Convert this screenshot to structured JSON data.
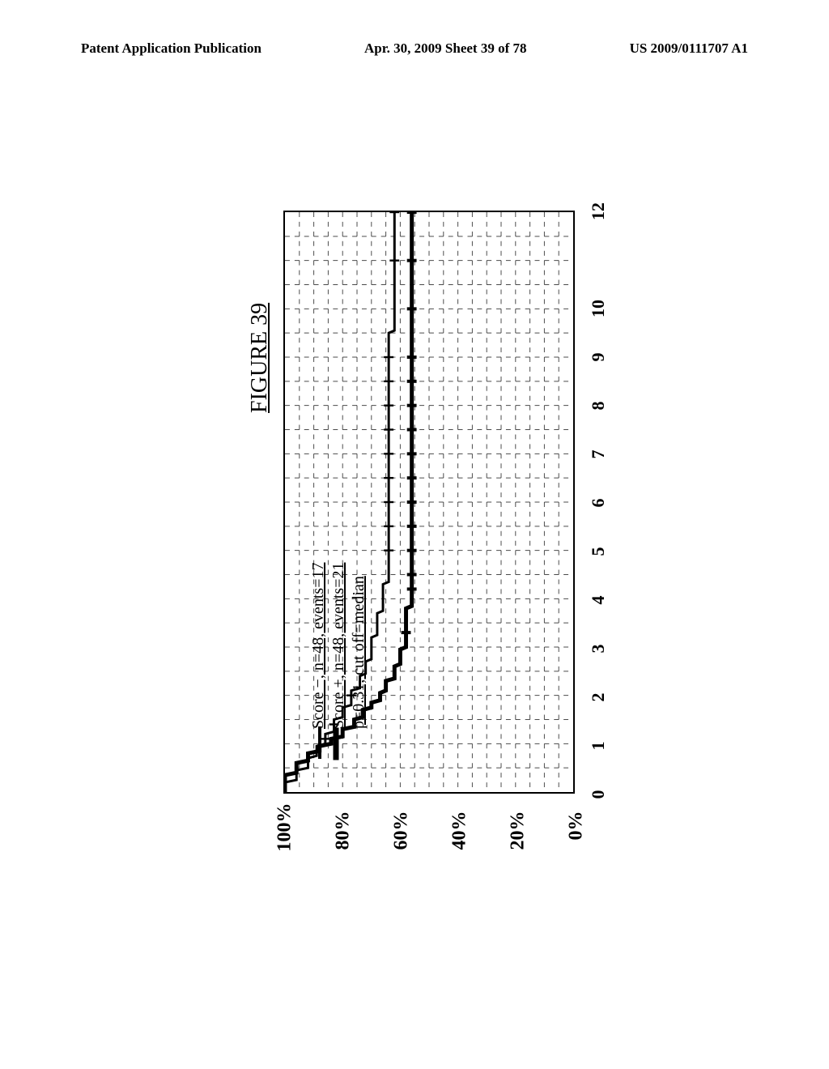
{
  "header": {
    "left": "Patent Application Publication",
    "center": "Apr. 30, 2009  Sheet 39 of 78",
    "right": "US 2009/0111707 A1"
  },
  "figure": {
    "title": "FIGURE 39",
    "title_fontsize": 28
  },
  "chart": {
    "type": "kaplan-meier",
    "y_ticks": [
      "0%",
      "20%",
      "40%",
      "60%",
      "80%",
      "100%"
    ],
    "y_positions_pct": [
      0,
      20,
      40,
      60,
      80,
      100
    ],
    "x_ticks": [
      "0",
      "1",
      "2",
      "3",
      "4",
      "5",
      "6",
      "7",
      "8",
      "9",
      "10",
      "12"
    ],
    "x_positions": [
      0,
      1,
      2,
      3,
      4,
      5,
      6,
      7,
      8,
      9,
      10,
      12
    ],
    "x_max": 12,
    "grid_h_steps": 20,
    "grid_v_steps_per_major": 2,
    "line_color": "#000000",
    "line_width_upper": 3,
    "line_width_lower": 5,
    "curve_upper": [
      [
        0,
        100
      ],
      [
        0.2,
        100
      ],
      [
        0.25,
        96
      ],
      [
        0.45,
        96
      ],
      [
        0.5,
        92
      ],
      [
        0.7,
        92
      ],
      [
        0.75,
        89
      ],
      [
        0.95,
        89
      ],
      [
        1.0,
        86
      ],
      [
        1.2,
        86
      ],
      [
        1.25,
        83
      ],
      [
        1.5,
        83
      ],
      [
        1.55,
        80
      ],
      [
        1.75,
        80
      ],
      [
        1.8,
        77
      ],
      [
        2.1,
        77
      ],
      [
        2.15,
        74
      ],
      [
        2.4,
        74
      ],
      [
        2.45,
        72
      ],
      [
        2.7,
        72
      ],
      [
        2.75,
        70
      ],
      [
        3.2,
        70
      ],
      [
        3.25,
        68
      ],
      [
        3.7,
        68
      ],
      [
        3.75,
        66
      ],
      [
        4.3,
        66
      ],
      [
        4.35,
        64
      ],
      [
        9.5,
        64
      ],
      [
        9.55,
        62
      ],
      [
        12,
        62
      ]
    ],
    "curve_lower": [
      [
        0,
        100
      ],
      [
        0.35,
        100
      ],
      [
        0.4,
        96
      ],
      [
        0.6,
        96
      ],
      [
        0.65,
        92
      ],
      [
        0.8,
        92
      ],
      [
        0.85,
        88
      ],
      [
        0.95,
        88
      ],
      [
        1.0,
        84
      ],
      [
        1.1,
        84
      ],
      [
        1.15,
        80
      ],
      [
        1.3,
        80
      ],
      [
        1.35,
        76
      ],
      [
        1.5,
        76
      ],
      [
        1.55,
        73
      ],
      [
        1.7,
        73
      ],
      [
        1.75,
        70
      ],
      [
        1.85,
        70
      ],
      [
        1.9,
        67
      ],
      [
        2.05,
        67
      ],
      [
        2.1,
        65
      ],
      [
        2.3,
        65
      ],
      [
        2.35,
        62
      ],
      [
        2.6,
        62
      ],
      [
        2.65,
        60
      ],
      [
        2.95,
        60
      ],
      [
        3.0,
        58
      ],
      [
        3.8,
        58
      ],
      [
        3.85,
        56
      ],
      [
        12,
        56
      ]
    ],
    "censor_marks_upper": [
      [
        1.1,
        86
      ],
      [
        1.4,
        83
      ],
      [
        2.0,
        77
      ],
      [
        5.0,
        64
      ],
      [
        5.5,
        64
      ],
      [
        6.0,
        64
      ],
      [
        6.5,
        64
      ],
      [
        7.0,
        64
      ],
      [
        7.5,
        64
      ],
      [
        8.0,
        64
      ],
      [
        8.5,
        64
      ],
      [
        9.0,
        64
      ],
      [
        11.0,
        62
      ],
      [
        12.0,
        62
      ]
    ],
    "censor_marks_lower": [
      [
        3.3,
        58
      ],
      [
        4.2,
        56
      ],
      [
        4.5,
        56
      ],
      [
        5.0,
        56
      ],
      [
        5.5,
        56
      ],
      [
        6.0,
        56
      ],
      [
        6.5,
        56
      ],
      [
        7.0,
        56
      ],
      [
        7.5,
        56
      ],
      [
        8.0,
        56
      ],
      [
        8.5,
        56
      ],
      [
        9.0,
        56
      ],
      [
        10.0,
        56
      ],
      [
        11.0,
        56
      ],
      [
        12.0,
        56
      ]
    ]
  },
  "legend": {
    "line1": "Score −, n=48, events=17",
    "line2": "Score +, n=48, events=21",
    "line3": "p=0.31, cut off=median"
  }
}
